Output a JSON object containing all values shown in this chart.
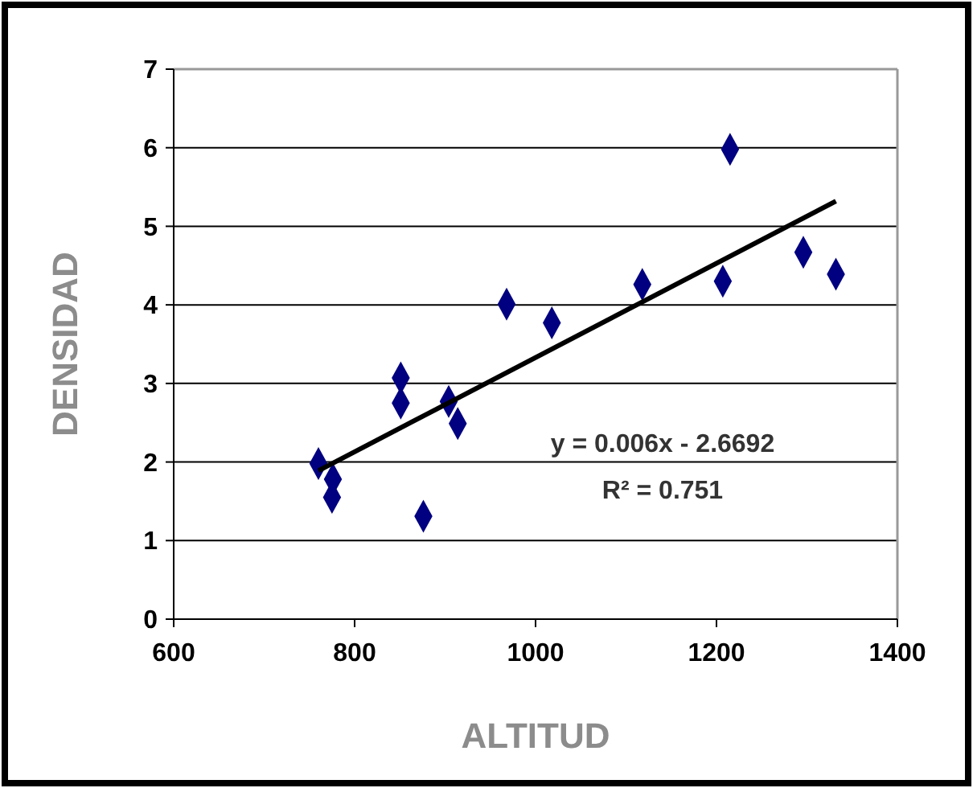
{
  "chart_data": {
    "type": "scatter",
    "xlabel": "ALTITUD",
    "ylabel": "DENSIDAD",
    "xlim": [
      600,
      1400
    ],
    "xticks": [
      600,
      800,
      1000,
      1200,
      1400
    ],
    "ylim": [
      0,
      7
    ],
    "yticks": [
      0,
      1,
      2,
      3,
      4,
      5,
      6,
      7
    ],
    "grid": "y",
    "series": [
      {
        "type": "scatter",
        "marker": "diamond",
        "color": "#000080",
        "x": [
          760,
          776,
          775,
          851,
          851,
          876,
          904,
          914,
          968,
          1018,
          1118,
          1207,
          1215,
          1296,
          1332
        ],
        "values": [
          1.98,
          1.78,
          1.55,
          3.07,
          2.75,
          1.31,
          2.77,
          2.49,
          4.01,
          3.77,
          4.26,
          4.3,
          5.98,
          4.67,
          4.39
        ]
      },
      {
        "type": "line",
        "marker": "none",
        "color": "#000000",
        "x": [
          760,
          1332
        ],
        "values": [
          1.89,
          5.32
        ]
      }
    ],
    "annotations": [
      "y = 0.006x - 2.6692",
      "R² = 0.751"
    ]
  }
}
